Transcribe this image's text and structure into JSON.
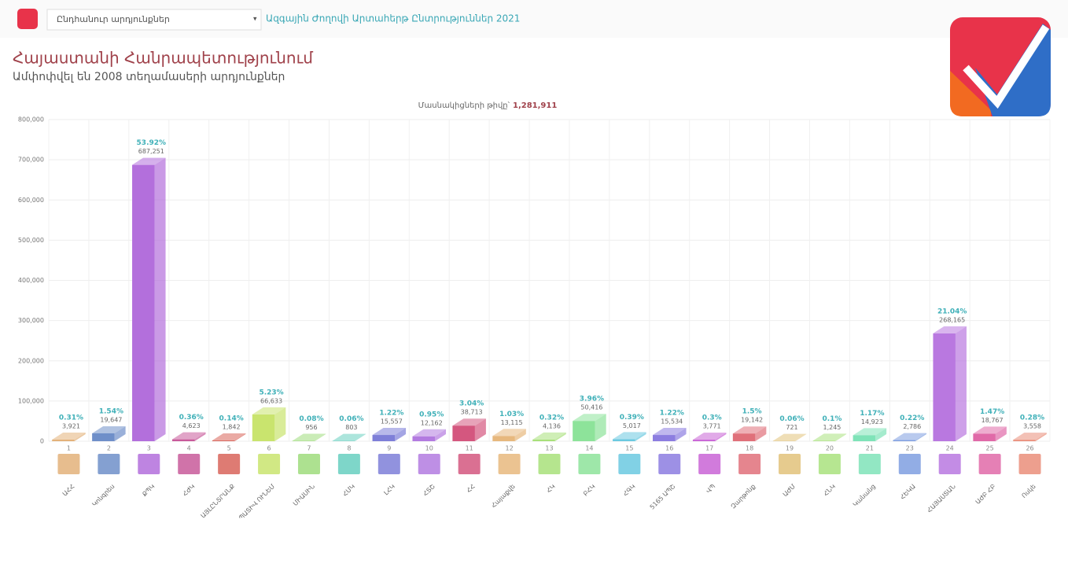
{
  "header": {
    "dropdown": "Ընդհանուր արդյունքներ",
    "link": "Ազգային Ժողովի Արտահերթ Ընտրություններ 2021"
  },
  "chart_data": {
    "type": "bar",
    "title": "Հայաստանի Հանրապետությունում",
    "subtitle": "Ամփոփվել են 2008 տեղամասերի արդյունքներ",
    "participants_label": "Մասնակիցների թիվը՝",
    "participants": "1,281,911",
    "numbers": [
      "1",
      "2",
      "3",
      "4",
      "5",
      "6",
      "7",
      "8",
      "9",
      "10",
      "11",
      "12",
      "13",
      "14",
      "15",
      "16",
      "17",
      "18",
      "19",
      "20",
      "21",
      "23",
      "24",
      "25",
      "26"
    ],
    "categories": [
      "ԱՀՀ",
      "Կոնգրես",
      "ՔՊԿ",
      "ՀԺԿ",
      "ԱՅԼԸՆՏՐԱՆՔ",
      "ՊԱՏԻՎ ՈՒՆԵՄ",
      "ՄԻԱՍԻՆ",
      "ՀՄԿ",
      "ԼՀԿ",
      "ՀՏՇ",
      "ՀՀ",
      "Հայաքվե",
      "ՀԿ",
      "ԲՀԿ",
      "ՀԳԿ",
      "5165 ԱՊՇ",
      "ՎՊ",
      "Զարթոնք",
      "ԱԺՄ",
      "ՀՆԿ",
      "Կանանց",
      "ՀԵԿԱ",
      "ՀԱՅԱՍՏԱՆ",
      "ԱԺԲ ՀԲ",
      "Ոսկե"
    ],
    "values": [
      3921,
      19647,
      687251,
      4623,
      1842,
      66633,
      956,
      803,
      15557,
      12162,
      38713,
      13115,
      4136,
      50416,
      5017,
      15534,
      3771,
      19142,
      721,
      1245,
      14923,
      2786,
      268165,
      18767,
      3558
    ],
    "value_labels": [
      "3,921",
      "19,647",
      "687,251",
      "4,623",
      "1,842",
      "66,633",
      "956",
      "803",
      "15,557",
      "12,162",
      "38,713",
      "13,115",
      "4,136",
      "50,416",
      "5,017",
      "15,534",
      "3,771",
      "19,142",
      "721",
      "1,245",
      "14,923",
      "2,786",
      "268,165",
      "18,767",
      "3,558"
    ],
    "percent_labels": [
      "0.31%",
      "1.54%",
      "53.92%",
      "0.36%",
      "0.14%",
      "5.23%",
      "0.08%",
      "0.06%",
      "1.22%",
      "0.95%",
      "3.04%",
      "1.03%",
      "0.32%",
      "3.96%",
      "0.39%",
      "1.22%",
      "0.3%",
      "1.5%",
      "0.06%",
      "0.1%",
      "1.17%",
      "0.22%",
      "21.04%",
      "1.47%",
      "0.28%"
    ],
    "colors": [
      "#e3b27a",
      "#6f8fc9",
      "#b36fdc",
      "#c85a9a",
      "#d8645a",
      "#c9e46e",
      "#9fdc7c",
      "#67cfc0",
      "#7e7fd8",
      "#b37be0",
      "#d4577f",
      "#e7b87e",
      "#a8e07a",
      "#8de39a",
      "#6bc9e0",
      "#8c7de0",
      "#c964d6",
      "#e0707a",
      "#e2c27a",
      "#a9e27e",
      "#7fe3b8",
      "#7f9fe0",
      "#b978e0",
      "#e06aa8",
      "#ea8e7a"
    ],
    "ylim": [
      0,
      800000
    ],
    "yticks": [
      0,
      {
        "value": 100000,
        "label": "100,000"
      },
      {
        "value": 200000,
        "label": "200,000"
      },
      {
        "value": 300000,
        "label": "300,000"
      },
      {
        "value": 400000,
        "label": "400,000"
      },
      {
        "value": 500000,
        "label": "500,000"
      },
      {
        "value": 600000,
        "label": "600,000"
      },
      {
        "value": 700000,
        "label": "700,000"
      },
      {
        "value": 800000,
        "label": "800,000"
      }
    ],
    "grid": true
  }
}
